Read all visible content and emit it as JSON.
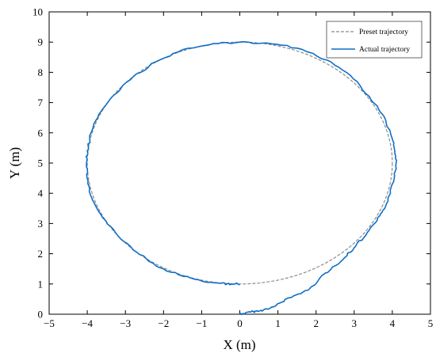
{
  "chart_data": {
    "type": "line",
    "title": "",
    "xlabel": "X (m)",
    "ylabel": "Y (m)",
    "xlim": [
      -5,
      5
    ],
    "ylim": [
      0,
      10
    ],
    "x_ticks": [
      "−5",
      "−4",
      "−3",
      "−2",
      "−1",
      "0",
      "1",
      "2",
      "3",
      "4",
      "5"
    ],
    "y_ticks": [
      "0",
      "1",
      "2",
      "3",
      "4",
      "5",
      "6",
      "7",
      "8",
      "9",
      "10"
    ],
    "grid": false,
    "legend_position": "top-right",
    "series": [
      {
        "name": "Preset trajectory",
        "style": "dashed",
        "color": "#8c8c8c",
        "shape": "ellipse",
        "center": [
          0,
          5
        ],
        "x_semi_axis": 4,
        "y_semi_axis": 4
      },
      {
        "name": "Actual trajectory",
        "style": "solid",
        "color": "#0f6fc6",
        "points": [
          [
            0.0,
            0.0
          ],
          [
            0.1,
            0.02
          ],
          [
            0.3,
            0.08
          ],
          [
            0.5,
            0.1
          ],
          [
            0.8,
            0.2
          ],
          [
            1.1,
            0.4
          ],
          [
            1.4,
            0.6
          ],
          [
            1.8,
            0.8
          ],
          [
            2.1,
            1.2
          ],
          [
            2.4,
            1.5
          ],
          [
            2.7,
            1.8
          ],
          [
            3.0,
            2.2
          ],
          [
            3.3,
            2.6
          ],
          [
            3.6,
            3.1
          ],
          [
            3.8,
            3.5
          ],
          [
            3.95,
            4.0
          ],
          [
            4.05,
            4.5
          ],
          [
            4.1,
            5.0
          ],
          [
            4.05,
            5.5
          ],
          [
            3.95,
            6.0
          ],
          [
            3.75,
            6.6
          ],
          [
            3.4,
            7.2
          ],
          [
            2.9,
            7.9
          ],
          [
            2.3,
            8.4
          ],
          [
            1.5,
            8.8
          ],
          [
            0.7,
            8.97
          ],
          [
            0.0,
            9.0
          ],
          [
            -0.7,
            8.95
          ],
          [
            -1.5,
            8.75
          ],
          [
            -2.2,
            8.35
          ],
          [
            -2.8,
            7.85
          ],
          [
            -3.3,
            7.25
          ],
          [
            -3.7,
            6.6
          ],
          [
            -3.9,
            6.0
          ],
          [
            -4.0,
            5.4
          ],
          [
            -4.02,
            5.0
          ],
          [
            -3.98,
            4.4
          ],
          [
            -3.9,
            3.9
          ],
          [
            -3.6,
            3.2
          ],
          [
            -3.2,
            2.6
          ],
          [
            -2.7,
            2.05
          ],
          [
            -2.2,
            1.6
          ],
          [
            -1.6,
            1.3
          ],
          [
            -1.0,
            1.1
          ],
          [
            -0.5,
            1.02
          ],
          [
            -0.2,
            1.0
          ],
          [
            0.0,
            1.0
          ]
        ]
      }
    ]
  }
}
